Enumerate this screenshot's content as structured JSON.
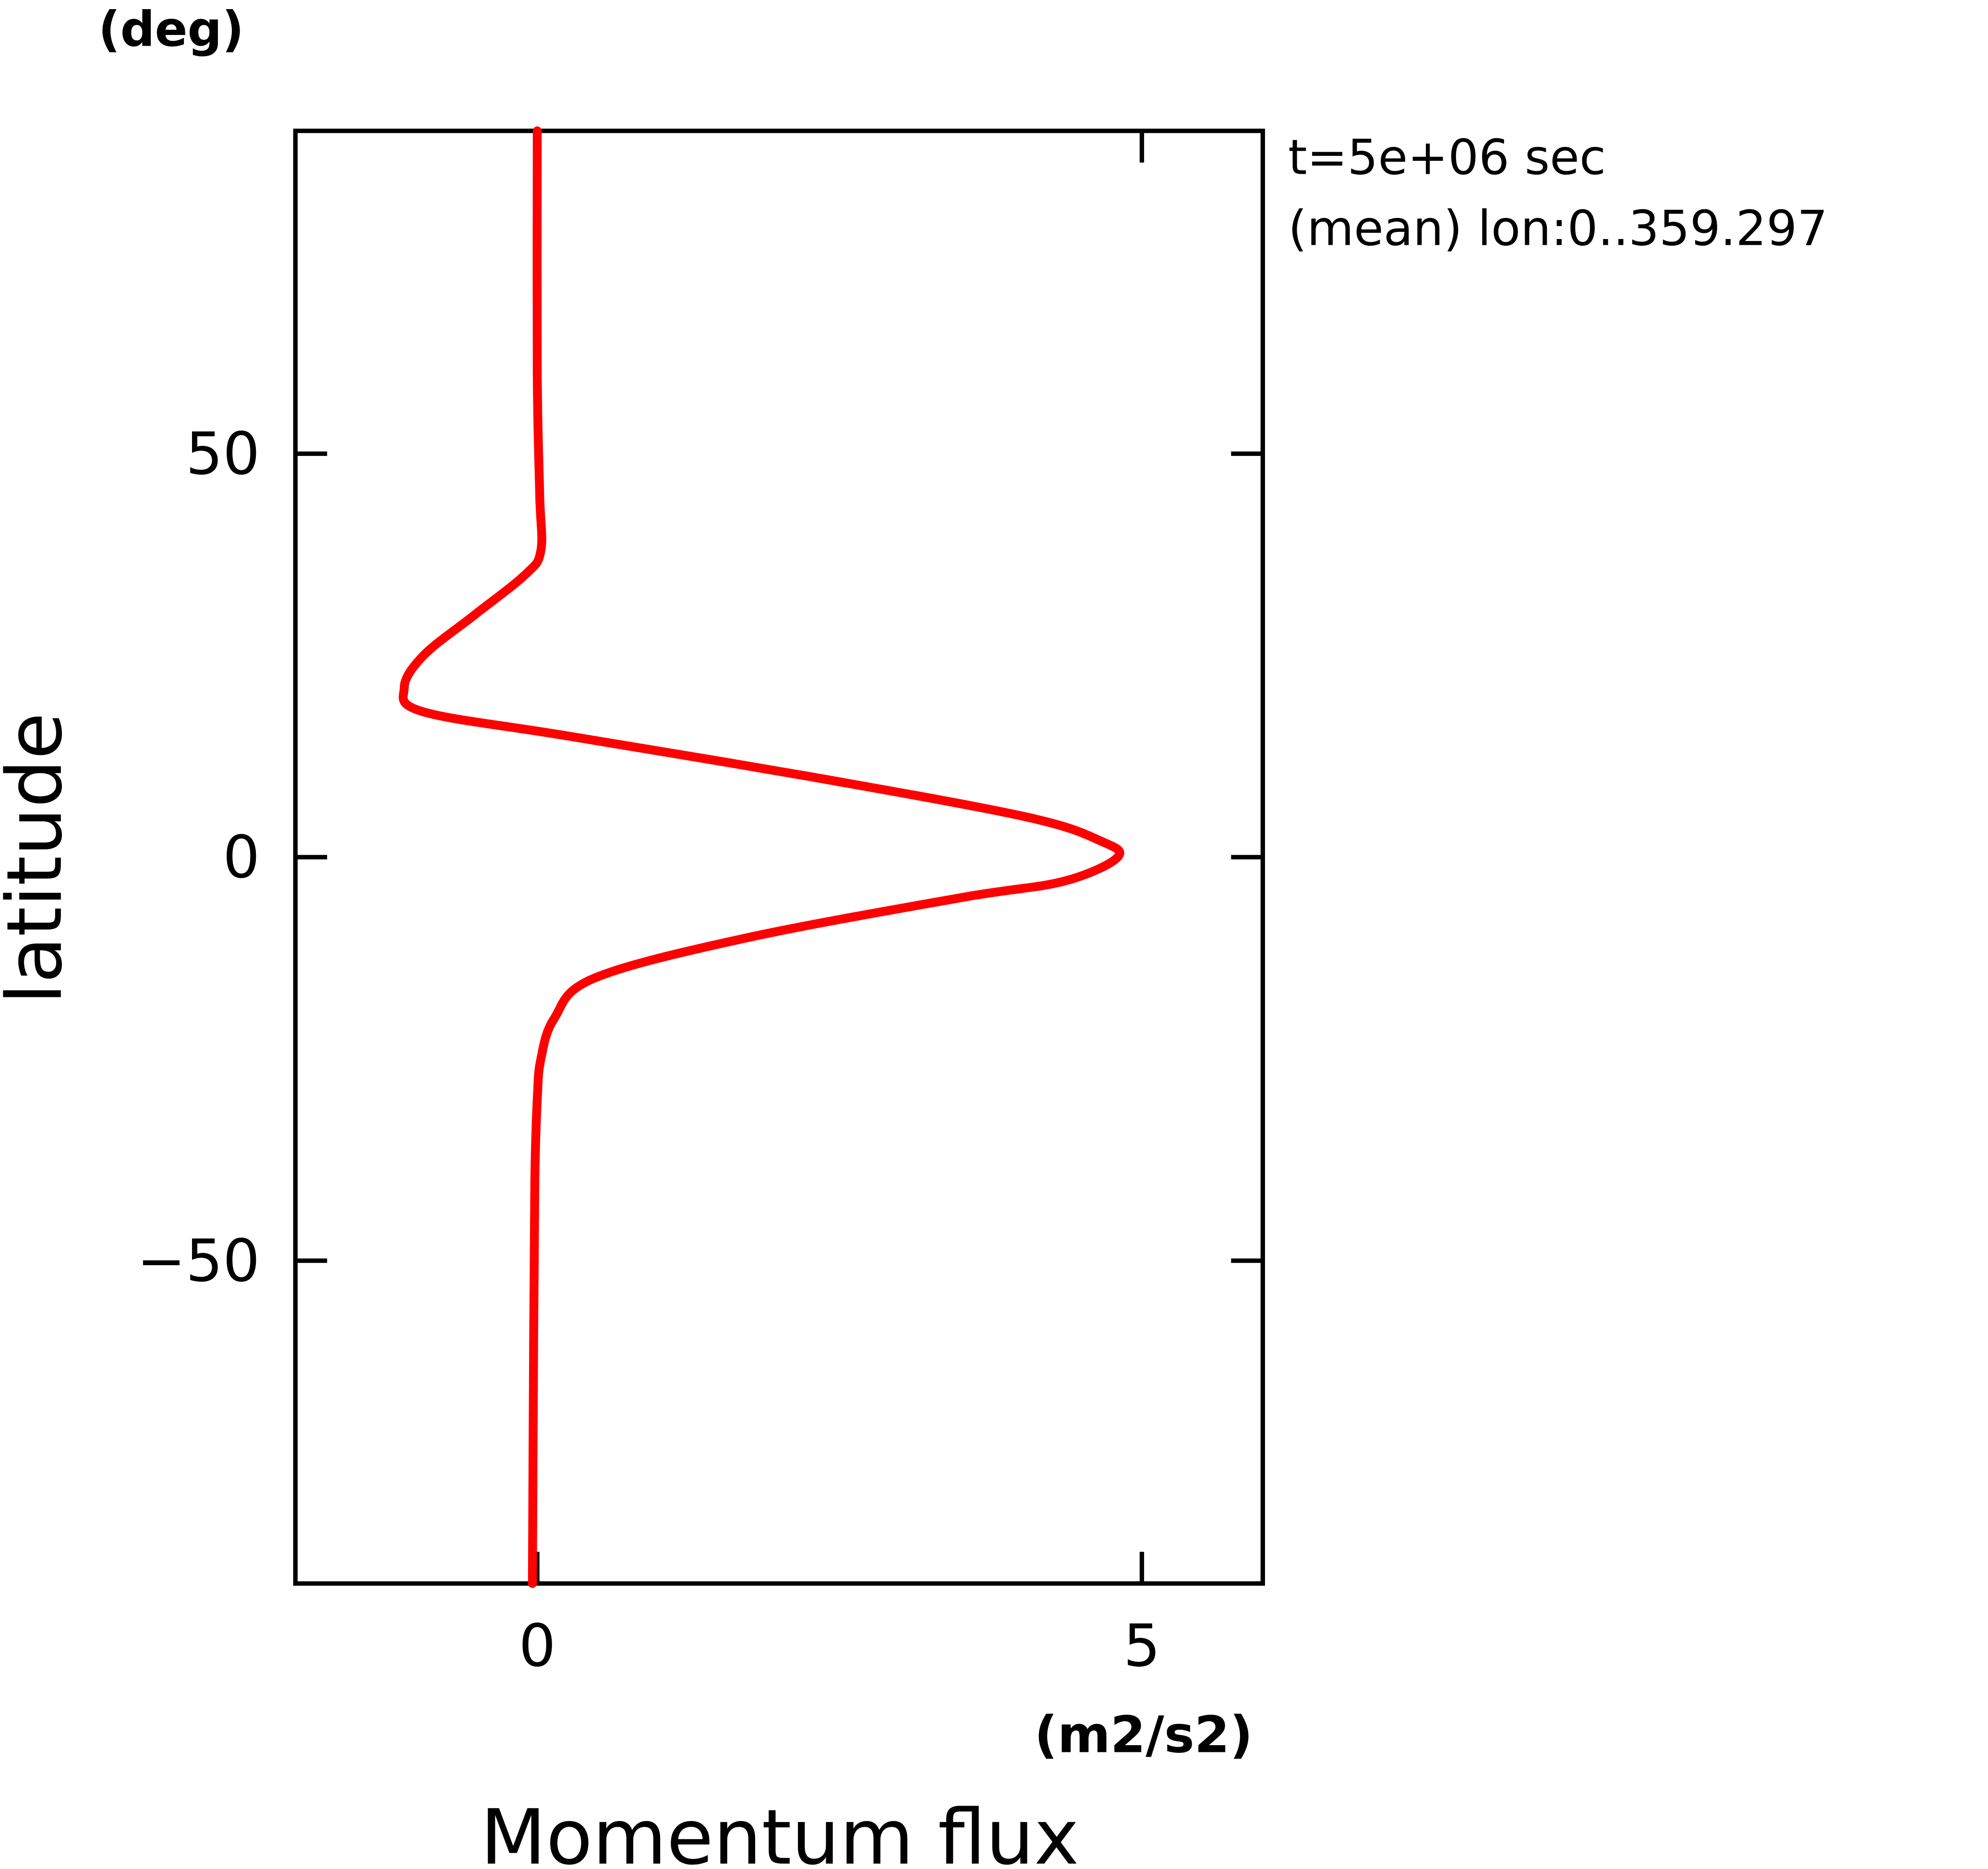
{
  "chart_data": {
    "type": "line",
    "y_unit": "(deg)",
    "y_label": "latitude",
    "x_unit": "(m2/s2)",
    "x_label": "Momentum flux",
    "annotations": [
      "t=5e+06 sec",
      "(mean) lon:0..359.297"
    ],
    "latitudes": [
      90,
      60,
      45,
      38,
      35,
      30,
      25,
      21,
      18,
      15,
      10,
      5,
      2,
      0,
      -3,
      -5,
      -10,
      -15,
      -20,
      -25,
      -30,
      -40,
      -60,
      -90
    ],
    "values": [
      0.0,
      0.0,
      0.02,
      0.03,
      -0.1,
      -0.52,
      -0.94,
      -1.1,
      -0.94,
      0.26,
      2.25,
      4.04,
      4.66,
      4.8,
      4.35,
      3.51,
      1.73,
      0.47,
      0.14,
      0.03,
      0.0,
      -0.02,
      -0.03,
      -0.04
    ],
    "color": "#ff0000",
    "xlim": [
      -2,
      6
    ],
    "xticks": [
      0,
      5
    ],
    "ylim": [
      -90,
      90
    ],
    "yticks": [
      {
        "value": -50,
        "label": "−50"
      },
      0,
      50
    ]
  }
}
